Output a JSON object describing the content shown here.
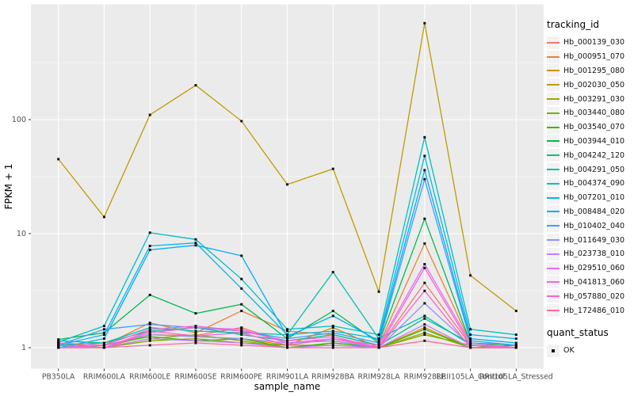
{
  "colors": {
    "panel_bg": "#EBEBEB",
    "grid": "#FFFFFF",
    "figure_bg": "#FFFFFF",
    "axis_text": "#4D4D4D",
    "axis_title": "#000000",
    "point": "#111111",
    "legend_key_bg": "#F2F2F2"
  },
  "chart_data": {
    "type": "line",
    "title": "",
    "xlabel": "sample_name",
    "ylabel": "FPKM + 1",
    "y_scale": "log10",
    "y_ticks": [
      "1",
      "10",
      "100"
    ],
    "y_tick_values": [
      1,
      10,
      100
    ],
    "y_minor_gridlines": [
      3.162,
      31.62,
      316.2
    ],
    "ylim": [
      0.95,
      1000
    ],
    "grid": true,
    "legend_position": "right",
    "point_marker": "small-black-square",
    "categories": [
      "PB350LA",
      "RRIM600LA",
      "RRIM600LE",
      "RRIM600SE",
      "RRIM600PE",
      "RRIM901LA",
      "RRIM928BA",
      "RRIM928LA",
      "RRIM928LE",
      "RRII105LA_Control",
      "RRII105LA_Stressed"
    ],
    "legend": {
      "title": "tracking_id"
    },
    "quant_legend": {
      "title": "quant_status",
      "items": [
        {
          "label": "OK",
          "marker": "black-square"
        }
      ]
    },
    "series": [
      {
        "name": "Hb_000139_030",
        "color": "#F8766D",
        "values": [
          1.05,
          1.0,
          1.3,
          1.28,
          1.5,
          1.1,
          1.15,
          1.0,
          3.7,
          1.05,
          1.0
        ]
      },
      {
        "name": "Hb_000951_070",
        "color": "#EA8331",
        "values": [
          1.0,
          1.05,
          1.65,
          1.35,
          2.1,
          1.4,
          1.3,
          1.05,
          8.2,
          1.1,
          1.0
        ]
      },
      {
        "name": "Hb_001295_080",
        "color": "#D89000",
        "values": [
          1.1,
          1.0,
          1.3,
          1.25,
          1.2,
          1.05,
          1.5,
          1.0,
          1.5,
          1.0,
          1.0
        ]
      },
      {
        "name": "Hb_002030_050",
        "color": "#C09B00",
        "values": [
          45,
          14,
          110,
          200,
          97,
          27,
          37,
          3.1,
          700,
          4.3,
          2.1
        ]
      },
      {
        "name": "Hb_003291_030",
        "color": "#A3A500",
        "values": [
          1.05,
          1.0,
          1.2,
          1.3,
          1.15,
          1.0,
          1.1,
          1.0,
          1.35,
          1.0,
          1.0
        ]
      },
      {
        "name": "Hb_003440_080",
        "color": "#7CAE00",
        "values": [
          1.1,
          1.0,
          1.15,
          1.2,
          1.1,
          1.05,
          1.05,
          1.0,
          1.3,
          1.05,
          1.0
        ]
      },
      {
        "name": "Hb_003540_070",
        "color": "#39B600",
        "values": [
          1.0,
          1.05,
          1.25,
          1.15,
          1.2,
          1.0,
          1.1,
          1.0,
          1.45,
          1.0,
          1.05
        ]
      },
      {
        "name": "Hb_003944_010",
        "color": "#00BB4E",
        "values": [
          1.18,
          1.35,
          2.9,
          2.0,
          2.4,
          1.2,
          2.1,
          1.1,
          13.5,
          1.1,
          1.05
        ]
      },
      {
        "name": "Hb_004242_120",
        "color": "#00C08B",
        "values": [
          1.15,
          1.1,
          1.4,
          1.5,
          1.3,
          1.15,
          1.3,
          1.05,
          1.8,
          1.1,
          1.0
        ]
      },
      {
        "name": "Hb_004291_050",
        "color": "#00C0AF",
        "values": [
          1.05,
          1.1,
          1.5,
          1.4,
          1.35,
          1.3,
          4.6,
          1.2,
          1.9,
          1.06,
          1.0
        ]
      },
      {
        "name": "Hb_004374_090",
        "color": "#00BFC4",
        "values": [
          1.12,
          1.55,
          10.2,
          8.9,
          4.0,
          1.45,
          1.55,
          1.3,
          70,
          1.45,
          1.3
        ]
      },
      {
        "name": "Hb_007201_010",
        "color": "#00B8E7",
        "values": [
          1.05,
          1.3,
          7.8,
          8.3,
          3.3,
          1.3,
          1.4,
          1.2,
          48,
          1.3,
          1.2
        ]
      },
      {
        "name": "Hb_008484_020",
        "color": "#00ACFC",
        "values": [
          1.0,
          1.2,
          7.2,
          7.9,
          6.4,
          1.25,
          1.9,
          1.15,
          36,
          1.2,
          1.1
        ]
      },
      {
        "name": "Hb_010402_040",
        "color": "#35A2FF",
        "values": [
          1.05,
          1.45,
          1.6,
          1.5,
          1.4,
          1.2,
          1.35,
          1.1,
          30,
          1.15,
          1.05
        ]
      },
      {
        "name": "Hb_011649_030",
        "color": "#9590FF",
        "values": [
          1.0,
          1.05,
          1.3,
          1.25,
          1.2,
          1.1,
          1.15,
          1.0,
          2.45,
          1.05,
          1.0
        ]
      },
      {
        "name": "Hb_023738_010",
        "color": "#C77CFF",
        "values": [
          1.05,
          1.0,
          1.2,
          1.15,
          1.1,
          1.0,
          1.05,
          1.0,
          1.6,
          1.0,
          1.0
        ]
      },
      {
        "name": "Hb_029510_060",
        "color": "#E76BF3",
        "values": [
          1.0,
          1.0,
          1.35,
          1.5,
          1.45,
          1.1,
          1.2,
          1.05,
          5.4,
          1.1,
          1.0
        ]
      },
      {
        "name": "Hb_041813_060",
        "color": "#FA62DB",
        "values": [
          1.1,
          1.05,
          1.45,
          1.55,
          1.4,
          1.15,
          1.25,
          1.0,
          5.0,
          1.05,
          1.0
        ]
      },
      {
        "name": "Hb_057880_020",
        "color": "#FF61CC",
        "values": [
          1.05,
          1.0,
          1.4,
          1.27,
          1.35,
          1.05,
          1.2,
          1.0,
          3.15,
          1.0,
          1.0
        ]
      },
      {
        "name": "Hb_172486_010",
        "color": "#FF6A98",
        "values": [
          1.0,
          1.0,
          1.05,
          1.1,
          1.05,
          1.0,
          1.0,
          1.0,
          1.15,
          1.0,
          1.0
        ]
      }
    ]
  }
}
